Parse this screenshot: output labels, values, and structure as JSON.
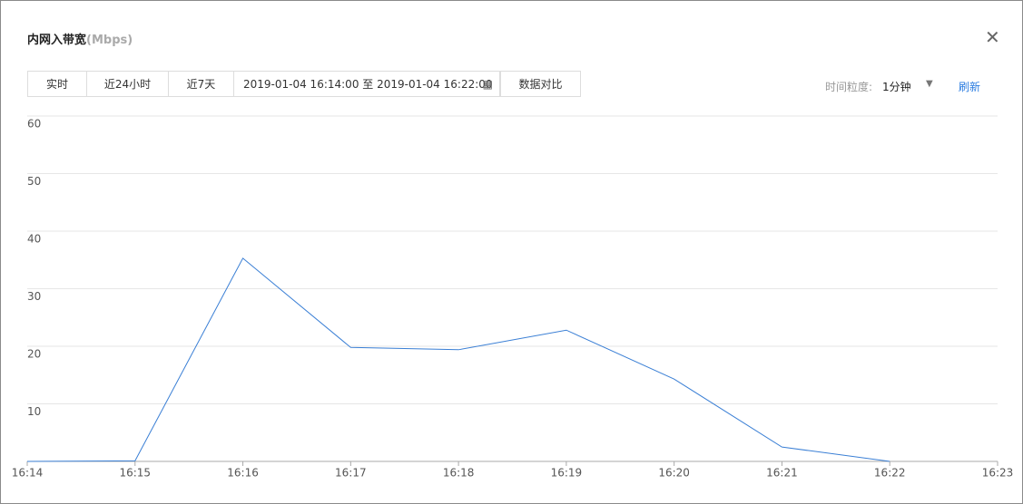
{
  "dialog": {
    "title": "内网入带宽",
    "unit": "(Mbps)"
  },
  "toolbar": {
    "buttons": [
      "实时",
      "近24小时",
      "近7天"
    ],
    "date_range": "2019-01-04 16:14:00 至 2019-01-04 16:22:00",
    "compare": "数据对比",
    "granularity_label": "时间粒度:",
    "granularity": "1分钟",
    "refresh": "刷新"
  },
  "chart_data": {
    "type": "line",
    "categories": [
      "16:14",
      "16:15",
      "16:16",
      "16:17",
      "16:18",
      "16:19",
      "16:20",
      "16:21",
      "16:22",
      "16:23"
    ],
    "values": [
      0,
      0.1,
      35.3,
      19.8,
      19.4,
      22.8,
      14.3,
      2.5,
      0,
      null
    ],
    "color": "#3a7fd5",
    "ylim": [
      0,
      60
    ],
    "yticks": [
      10,
      20,
      30,
      40,
      50,
      60
    ],
    "grid": true
  }
}
